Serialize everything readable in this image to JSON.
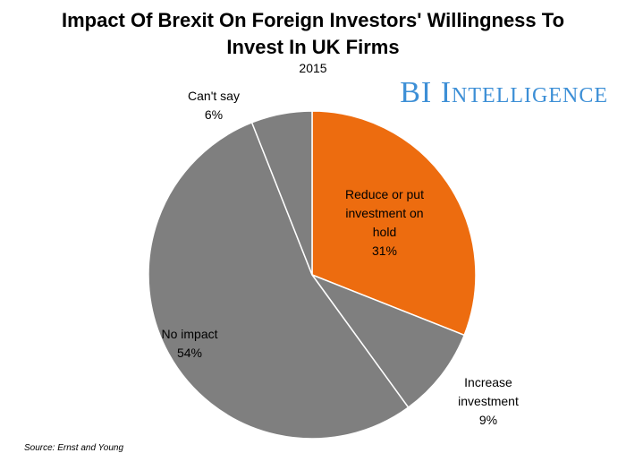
{
  "chart_data": {
    "type": "pie",
    "title": "Impact Of Brexit On Foreign Investors' Willingness To Invest In UK Firms",
    "title_lines": [
      "Impact Of Brexit On Foreign Investors' Willingness To",
      "Invest In UK Firms"
    ],
    "subtitle": "2015",
    "start_angle_deg": 0,
    "direction": "clockwise",
    "slices": [
      {
        "label_lines": [
          "Reduce or put",
          "investment on",
          "hold"
        ],
        "value": 31,
        "display": "31%",
        "color": "#ed6c0f",
        "label_position": "inside"
      },
      {
        "label_lines": [
          "Increase",
          "investment"
        ],
        "value": 9,
        "display": "9%",
        "color": "#7f7f7f",
        "label_position": "outside"
      },
      {
        "label_lines": [
          "No impact"
        ],
        "value": 54,
        "display": "54%",
        "color": "#7f7f7f",
        "label_position": "inside"
      },
      {
        "label_lines": [
          "Can't say"
        ],
        "value": 6,
        "display": "6%",
        "color": "#7f7f7f",
        "label_position": "outside"
      }
    ],
    "slice_border_color": "#ffffff",
    "source": "Source: Ernst and Young"
  },
  "branding": {
    "logo_text": "BI Intelligence",
    "color": "#3d8fd6"
  }
}
